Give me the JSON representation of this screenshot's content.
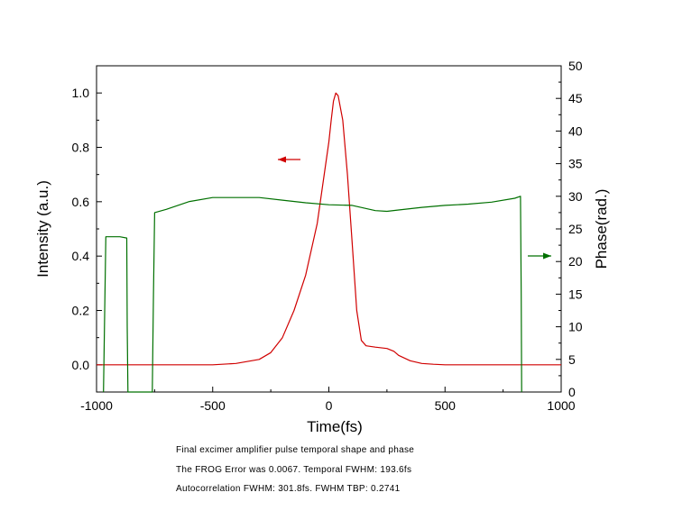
{
  "chart_data": {
    "type": "line",
    "xlabel": "Time(fs)",
    "ylabel": "Intensity (a.u.)",
    "y2label": "Phase(rad.)",
    "xlim": [
      -1000,
      1000
    ],
    "ylim": [
      -0.1,
      1.1
    ],
    "y2lim": [
      0,
      50
    ],
    "x_ticks": [
      -1000,
      -500,
      0,
      500,
      1000
    ],
    "y_ticks": [
      0.0,
      0.2,
      0.4,
      0.6,
      0.8,
      1.0
    ],
    "y_tick_labels": [
      "0.0",
      "0.2",
      "0.4",
      "0.6",
      "0.8",
      "1.0"
    ],
    "y2_ticks": [
      0,
      5,
      10,
      15,
      20,
      25,
      30,
      35,
      40,
      45,
      50
    ],
    "grid": false,
    "colors": {
      "intensity": "#d00000",
      "phase": "#007000"
    },
    "series": [
      {
        "axis": "left",
        "values_x": [
          -1000,
          -700,
          -500,
          -400,
          -300,
          -250,
          -200,
          -150,
          -100,
          -50,
          0,
          10,
          20,
          30,
          40,
          60,
          80,
          100,
          120,
          140,
          160,
          200,
          250,
          280,
          300,
          350,
          400,
          450,
          500,
          600,
          800,
          1000
        ],
        "values_y": [
          0,
          0,
          0,
          0.005,
          0.02,
          0.045,
          0.1,
          0.2,
          0.33,
          0.52,
          0.82,
          0.9,
          0.97,
          1.0,
          0.99,
          0.9,
          0.7,
          0.45,
          0.2,
          0.09,
          0.07,
          0.065,
          0.06,
          0.05,
          0.035,
          0.015,
          0.005,
          0.002,
          0,
          0,
          0,
          0
        ]
      },
      {
        "axis": "right",
        "values_x": [
          -970,
          -965,
          -960,
          -950,
          -900,
          -870,
          -868,
          -865,
          -760,
          -755,
          -750,
          -700,
          -600,
          -500,
          -300,
          -200,
          -100,
          0,
          100,
          200,
          250,
          300,
          400,
          500,
          600,
          700,
          800,
          825,
          828,
          830
        ],
        "values_y": [
          0,
          12,
          23.8,
          23.8,
          23.8,
          23.6,
          10,
          0,
          0,
          15,
          27.5,
          28,
          29.2,
          29.8,
          29.8,
          29.4,
          29.0,
          28.7,
          28.6,
          27.8,
          27.7,
          27.9,
          28.3,
          28.6,
          28.8,
          29.1,
          29.7,
          30.0,
          15,
          0
        ]
      }
    ],
    "annotations": [
      "left-arrow-red",
      "right-arrow-green"
    ]
  },
  "caption": {
    "line1": "Final excimer amplifier pulse temporal shape and phase",
    "line2": "The FROG Error was 0.0067. Temporal FWHM: 193.6fs",
    "line3": "Autocorrelation FWHM: 301.8fs.  FWHM TBP: 0.2741"
  }
}
